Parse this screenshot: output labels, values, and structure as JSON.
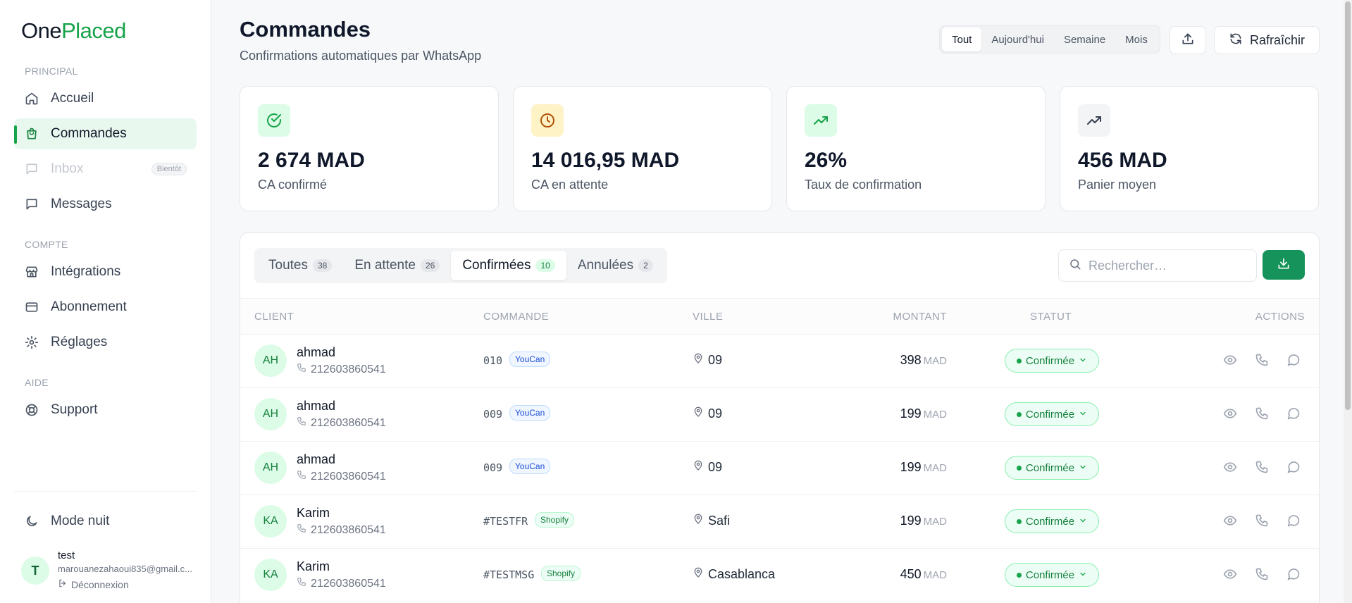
{
  "brand": {
    "part1": "One",
    "part2": "Placed"
  },
  "sidebar": {
    "sections": {
      "principal": "PRINCIPAL",
      "compte": "COMPTE",
      "aide": "AIDE"
    },
    "items": [
      {
        "label": "Accueil",
        "icon": "home-icon"
      },
      {
        "label": "Commandes",
        "icon": "shopping-bag-icon",
        "active": true
      },
      {
        "label": "Inbox",
        "icon": "message-square-icon",
        "badge": "Bientôt",
        "disabled": true
      },
      {
        "label": "Messages",
        "icon": "message-square-icon"
      },
      {
        "label": "Intégrations",
        "icon": "store-icon"
      },
      {
        "label": "Abonnement",
        "icon": "credit-card-icon"
      },
      {
        "label": "Réglages",
        "icon": "gear-icon"
      },
      {
        "label": "Support",
        "icon": "life-buoy-icon"
      }
    ],
    "night_mode": "Mode nuit",
    "user": {
      "initial": "T",
      "name": "test",
      "email": "marouanezahaoui835@gmail.c...",
      "logout": "Déconnexion"
    }
  },
  "header": {
    "title": "Commandes",
    "subtitle": "Confirmations automatiques par WhatsApp",
    "period_tabs": [
      "Tout",
      "Aujourd'hui",
      "Semaine",
      "Mois"
    ],
    "active_period": "Tout",
    "refresh_label": "Rafraîchir"
  },
  "kpis": [
    {
      "value": "2 674 MAD",
      "label": "CA confirmé",
      "icon": "check-circle-icon",
      "color": "#16a34a",
      "bg": "#dcfce7"
    },
    {
      "value": "14 016,95 MAD",
      "label": "CA en attente",
      "icon": "clock-icon",
      "color": "#b45309",
      "bg": "#fef3c7"
    },
    {
      "value": "26%",
      "label": "Taux de confirmation",
      "icon": "trending-up-icon",
      "color": "#16a34a",
      "bg": "#dcfce7"
    },
    {
      "value": "456 MAD",
      "label": "Panier moyen",
      "icon": "trending-up-icon",
      "color": "#374151",
      "bg": "#f3f4f6"
    }
  ],
  "orders": {
    "tabs": [
      {
        "label": "Toutes",
        "count": "38"
      },
      {
        "label": "En attente",
        "count": "26"
      },
      {
        "label": "Confirmées",
        "count": "10",
        "active": true
      },
      {
        "label": "Annulées",
        "count": "2"
      }
    ],
    "search_placeholder": "Rechercher…",
    "columns": {
      "client": "CLIENT",
      "commande": "COMMANDE",
      "ville": "VILLE",
      "montant": "MONTANT",
      "statut": "STATUT",
      "actions": "ACTIONS"
    },
    "rows": [
      {
        "initials": "AH",
        "name": "ahmad",
        "phone": "212603860541",
        "order": "010",
        "source": "YouCan",
        "city": "09",
        "amount": "398",
        "currency": "MAD",
        "status": "Confirmée"
      },
      {
        "initials": "AH",
        "name": "ahmad",
        "phone": "212603860541",
        "order": "009",
        "source": "YouCan",
        "city": "09",
        "amount": "199",
        "currency": "MAD",
        "status": "Confirmée"
      },
      {
        "initials": "AH",
        "name": "ahmad",
        "phone": "212603860541",
        "order": "009",
        "source": "YouCan",
        "city": "09",
        "amount": "199",
        "currency": "MAD",
        "status": "Confirmée"
      },
      {
        "initials": "KA",
        "name": "Karim",
        "phone": "212603860541",
        "order": "#TESTFR",
        "source": "Shopify",
        "city": "Safi",
        "amount": "199",
        "currency": "MAD",
        "status": "Confirmée"
      },
      {
        "initials": "KA",
        "name": "Karim",
        "phone": "212603860541",
        "order": "#TESTMSG",
        "source": "Shopify",
        "city": "Casablanca",
        "amount": "450",
        "currency": "MAD",
        "status": "Confirmée"
      }
    ]
  },
  "colors": {
    "accent": "#16a34a",
    "accent_dark": "#15935a"
  }
}
